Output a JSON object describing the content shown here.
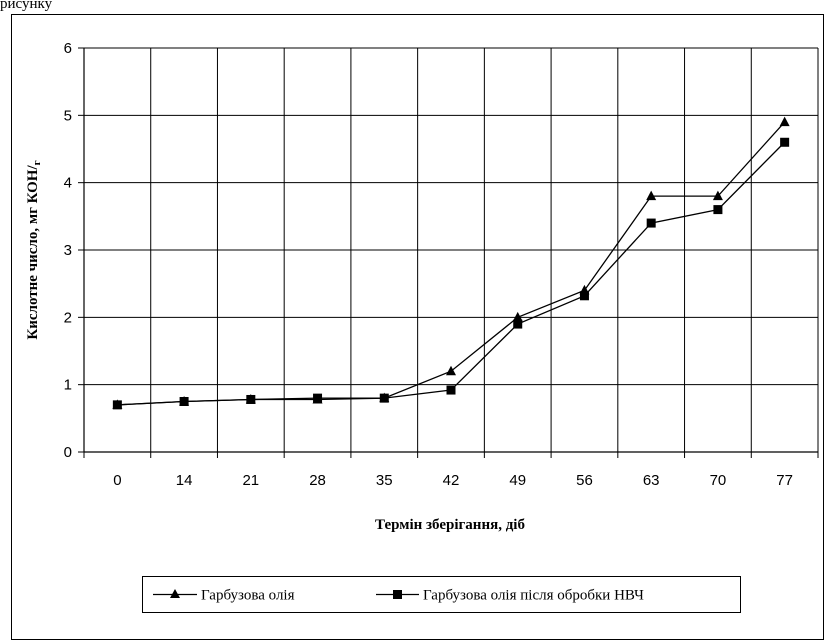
{
  "caption_fragment": "рисунку",
  "chart_data": {
    "type": "line",
    "categories": [
      "0",
      "14",
      "21",
      "28",
      "35",
      "42",
      "49",
      "56",
      "63",
      "70",
      "77"
    ],
    "series": [
      {
        "name": "Гарбузова олія",
        "marker": "triangle",
        "values": [
          0.7,
          0.75,
          0.78,
          0.78,
          0.8,
          1.2,
          2.0,
          2.4,
          3.8,
          3.8,
          4.9
        ]
      },
      {
        "name": "Гарбузова олія після обробки НВЧ",
        "marker": "square",
        "values": [
          0.7,
          0.75,
          0.78,
          0.8,
          0.8,
          0.92,
          1.9,
          2.32,
          3.4,
          3.6,
          4.6
        ]
      }
    ],
    "xlabel": "Термін зберігання, діб",
    "ylabel": "Кислотне число, мг КОН/",
    "ylabel_sub": "г",
    "ylim": [
      0,
      6
    ],
    "yticks": [
      "0",
      "1",
      "2",
      "3",
      "4",
      "5",
      "6"
    ],
    "grid": true,
    "legend_position": "bottom",
    "colors": {
      "line": "#000000",
      "grid": "#000000"
    }
  }
}
